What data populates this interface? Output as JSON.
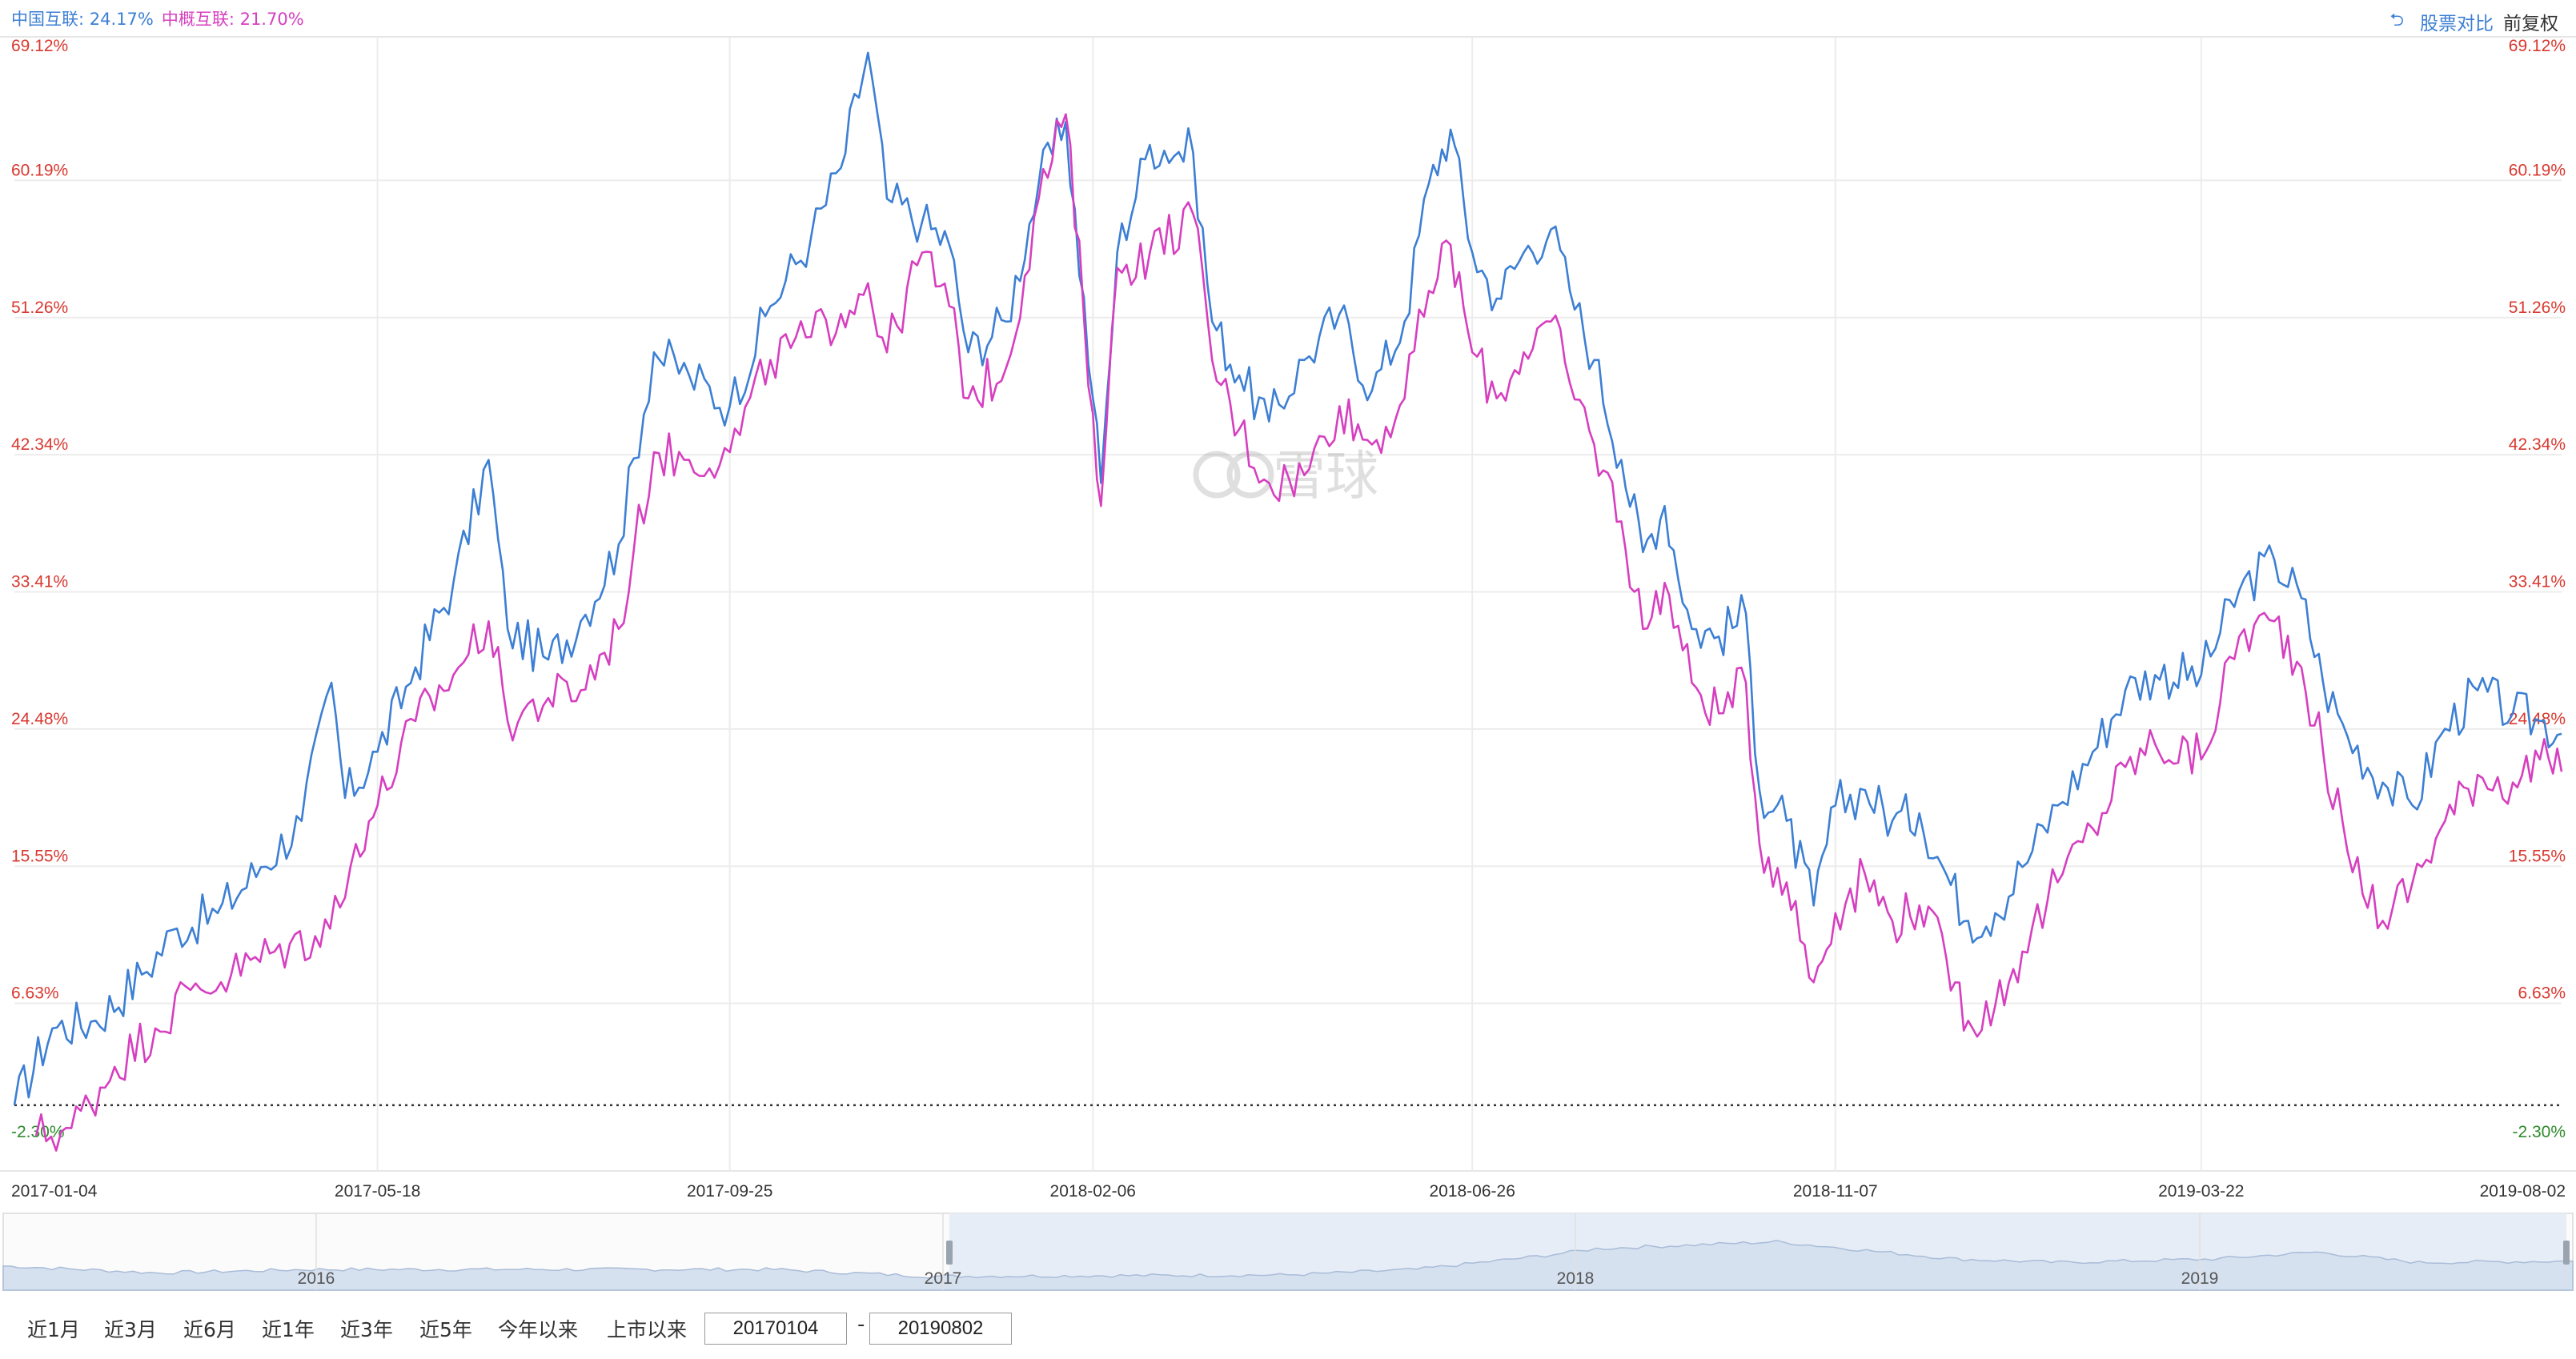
{
  "legend": {
    "series1": "中国互联: 24.17%",
    "series2": "中概互联: 21.70%"
  },
  "toolbar": {
    "compare_label": "股票对比",
    "adjust_label": "前复权"
  },
  "watermark": "雪球",
  "range_buttons": [
    "近1月",
    "近3月",
    "近6月",
    "近1年",
    "近3年",
    "近5年",
    "今年以来",
    "上市以来"
  ],
  "date_range": {
    "start": "20170104",
    "end": "20190802"
  },
  "navigator": {
    "year_labels": [
      "2016",
      "2017",
      "2018",
      "2019"
    ]
  },
  "colors": {
    "series1": "#3c7fd4",
    "series2": "#d63fc0",
    "ytick": "#d9382f",
    "ytick_negative": "#2e8b2e",
    "nav_fill": "#d6e1f0",
    "nav_line": "#a9bcd8"
  },
  "chart_data": {
    "type": "line",
    "title": "",
    "xlabel": "",
    "ylabel": "",
    "y_unit": "%",
    "ylim": [
      -2.3,
      69.12
    ],
    "yticks": [
      69.12,
      60.19,
      51.26,
      42.34,
      33.41,
      24.48,
      15.55,
      6.63,
      -2.3
    ],
    "ytick_labels": [
      "69.12%",
      "60.19%",
      "51.26%",
      "42.34%",
      "33.41%",
      "24.48%",
      "15.55%",
      "6.63%",
      "-2.30%"
    ],
    "xlim": [
      "2017-01-04",
      "2019-08-02"
    ],
    "xticks": [
      "2017-01-04",
      "2017-05-18",
      "2017-09-25",
      "2018-02-06",
      "2018-06-26",
      "2018-11-07",
      "2019-03-22",
      "2019-08-02"
    ],
    "baseline": 0,
    "grid": true,
    "legend": "top-left",
    "series": [
      {
        "name": "中国互联",
        "color": "#3c7fd4",
        "points": [
          [
            "2017-01-04",
            0.0
          ],
          [
            "2017-01-18",
            5.0
          ],
          [
            "2017-02-03",
            5.5
          ],
          [
            "2017-02-20",
            8.5
          ],
          [
            "2017-03-05",
            11.5
          ],
          [
            "2017-03-20",
            12.5
          ],
          [
            "2017-04-05",
            15.5
          ],
          [
            "2017-04-20",
            18.5
          ],
          [
            "2017-05-01",
            27.5
          ],
          [
            "2017-05-06",
            20.0
          ],
          [
            "2017-05-18",
            23.0
          ],
          [
            "2017-06-01",
            28.5
          ],
          [
            "2017-06-15",
            34.0
          ],
          [
            "2017-06-28",
            42.0
          ],
          [
            "2017-07-05",
            31.0
          ],
          [
            "2017-07-20",
            29.0
          ],
          [
            "2017-08-01",
            31.5
          ],
          [
            "2017-08-15",
            36.5
          ],
          [
            "2017-08-28",
            49.0
          ],
          [
            "2017-09-10",
            47.5
          ],
          [
            "2017-09-25",
            45.5
          ],
          [
            "2017-10-10",
            52.0
          ],
          [
            "2017-10-25",
            56.5
          ],
          [
            "2017-11-05",
            61.0
          ],
          [
            "2017-11-15",
            68.5
          ],
          [
            "2017-11-22",
            59.0
          ],
          [
            "2017-12-05",
            57.5
          ],
          [
            "2017-12-15",
            56.0
          ],
          [
            "2017-12-22",
            49.0
          ],
          [
            "2018-01-05",
            51.0
          ],
          [
            "2018-01-17",
            60.0
          ],
          [
            "2018-01-27",
            64.0
          ],
          [
            "2018-02-06",
            46.0
          ],
          [
            "2018-02-09",
            40.5
          ],
          [
            "2018-02-15",
            55.5
          ],
          [
            "2018-02-27",
            62.5
          ],
          [
            "2018-03-15",
            62.0
          ],
          [
            "2018-03-22",
            51.0
          ],
          [
            "2018-04-01",
            47.5
          ],
          [
            "2018-04-12",
            44.5
          ],
          [
            "2018-04-25",
            48.5
          ],
          [
            "2018-05-08",
            51.5
          ],
          [
            "2018-05-20",
            46.5
          ],
          [
            "2018-06-01",
            51.0
          ],
          [
            "2018-06-10",
            60.0
          ],
          [
            "2018-06-18",
            63.5
          ],
          [
            "2018-06-26",
            55.5
          ],
          [
            "2018-07-05",
            52.5
          ],
          [
            "2018-07-15",
            55.5
          ],
          [
            "2018-07-25",
            57.0
          ],
          [
            "2018-08-01",
            53.0
          ],
          [
            "2018-08-10",
            48.5
          ],
          [
            "2018-08-20",
            42.0
          ],
          [
            "2018-08-28",
            36.0
          ],
          [
            "2018-09-05",
            39.0
          ],
          [
            "2018-09-15",
            31.0
          ],
          [
            "2018-09-25",
            30.5
          ],
          [
            "2018-10-05",
            32.0
          ],
          [
            "2018-10-10",
            20.5
          ],
          [
            "2018-10-20",
            18.5
          ],
          [
            "2018-10-30",
            13.0
          ],
          [
            "2018-11-07",
            19.5
          ],
          [
            "2018-11-18",
            20.5
          ],
          [
            "2018-11-28",
            18.5
          ],
          [
            "2018-12-08",
            19.0
          ],
          [
            "2018-12-18",
            15.0
          ],
          [
            "2018-12-26",
            12.0
          ],
          [
            "2019-01-05",
            12.5
          ],
          [
            "2019-01-15",
            15.5
          ],
          [
            "2019-01-28",
            19.5
          ],
          [
            "2019-02-10",
            23.0
          ],
          [
            "2019-02-22",
            27.0
          ],
          [
            "2019-03-05",
            28.0
          ],
          [
            "2019-03-22",
            28.0
          ],
          [
            "2019-04-05",
            33.5
          ],
          [
            "2019-04-18",
            35.5
          ],
          [
            "2019-04-28",
            33.0
          ],
          [
            "2019-05-06",
            27.5
          ],
          [
            "2019-05-15",
            24.0
          ],
          [
            "2019-05-28",
            21.0
          ],
          [
            "2019-06-08",
            19.5
          ],
          [
            "2019-06-20",
            24.5
          ],
          [
            "2019-07-02",
            27.0
          ],
          [
            "2019-07-15",
            25.5
          ],
          [
            "2019-07-25",
            25.0
          ],
          [
            "2019-08-02",
            24.17
          ]
        ]
      },
      {
        "name": "中概互联",
        "color": "#d63fc0",
        "points": [
          [
            "2017-01-12",
            -2.0
          ],
          [
            "2017-01-25",
            -1.5
          ],
          [
            "2017-02-10",
            2.5
          ],
          [
            "2017-02-25",
            5.0
          ],
          [
            "2017-03-10",
            7.5
          ],
          [
            "2017-03-25",
            8.5
          ],
          [
            "2017-04-10",
            10.0
          ],
          [
            "2017-04-25",
            11.0
          ],
          [
            "2017-05-06",
            13.5
          ],
          [
            "2017-05-10",
            17.0
          ],
          [
            "2017-05-18",
            19.5
          ],
          [
            "2017-06-01",
            25.0
          ],
          [
            "2017-06-15",
            28.0
          ],
          [
            "2017-06-28",
            31.5
          ],
          [
            "2017-07-05",
            25.0
          ],
          [
            "2017-07-20",
            26.5
          ],
          [
            "2017-08-01",
            27.0
          ],
          [
            "2017-08-15",
            31.0
          ],
          [
            "2017-08-28",
            42.5
          ],
          [
            "2017-09-10",
            42.0
          ],
          [
            "2017-09-25",
            42.5
          ],
          [
            "2017-10-10",
            48.5
          ],
          [
            "2017-10-25",
            50.0
          ],
          [
            "2017-11-05",
            51.5
          ],
          [
            "2017-11-15",
            53.5
          ],
          [
            "2017-11-22",
            49.0
          ],
          [
            "2017-12-05",
            55.5
          ],
          [
            "2017-12-15",
            52.0
          ],
          [
            "2017-12-22",
            46.0
          ],
          [
            "2018-01-05",
            48.0
          ],
          [
            "2018-01-17",
            59.0
          ],
          [
            "2018-01-27",
            64.5
          ],
          [
            "2018-02-06",
            45.0
          ],
          [
            "2018-02-09",
            39.0
          ],
          [
            "2018-02-15",
            54.5
          ],
          [
            "2018-02-27",
            55.5
          ],
          [
            "2018-03-15",
            58.0
          ],
          [
            "2018-03-22",
            48.5
          ],
          [
            "2018-04-01",
            44.0
          ],
          [
            "2018-04-12",
            40.5
          ],
          [
            "2018-04-25",
            41.0
          ],
          [
            "2018-05-08",
            45.5
          ],
          [
            "2018-05-20",
            43.0
          ],
          [
            "2018-06-01",
            46.0
          ],
          [
            "2018-06-10",
            53.0
          ],
          [
            "2018-06-18",
            56.0
          ],
          [
            "2018-06-26",
            49.0
          ],
          [
            "2018-07-05",
            46.0
          ],
          [
            "2018-07-15",
            49.0
          ],
          [
            "2018-07-25",
            51.0
          ],
          [
            "2018-08-01",
            47.0
          ],
          [
            "2018-08-10",
            43.0
          ],
          [
            "2018-08-20",
            38.0
          ],
          [
            "2018-08-28",
            31.0
          ],
          [
            "2018-09-05",
            34.0
          ],
          [
            "2018-09-15",
            27.5
          ],
          [
            "2018-09-25",
            25.5
          ],
          [
            "2018-10-05",
            27.5
          ],
          [
            "2018-10-10",
            17.0
          ],
          [
            "2018-10-20",
            14.5
          ],
          [
            "2018-10-30",
            8.0
          ],
          [
            "2018-11-07",
            12.5
          ],
          [
            "2018-11-18",
            15.0
          ],
          [
            "2018-11-28",
            12.0
          ],
          [
            "2018-12-08",
            13.0
          ],
          [
            "2018-12-18",
            9.5
          ],
          [
            "2018-12-26",
            5.5
          ],
          [
            "2019-01-05",
            6.5
          ],
          [
            "2019-01-15",
            10.0
          ],
          [
            "2019-01-28",
            14.5
          ],
          [
            "2019-02-10",
            18.0
          ],
          [
            "2019-02-22",
            22.0
          ],
          [
            "2019-03-05",
            23.5
          ],
          [
            "2019-03-22",
            22.5
          ],
          [
            "2019-04-05",
            30.5
          ],
          [
            "2019-04-18",
            31.5
          ],
          [
            "2019-04-28",
            28.5
          ],
          [
            "2019-05-06",
            23.0
          ],
          [
            "2019-05-15",
            16.5
          ],
          [
            "2019-05-28",
            12.0
          ],
          [
            "2019-06-08",
            14.5
          ],
          [
            "2019-06-20",
            18.5
          ],
          [
            "2019-07-02",
            21.5
          ],
          [
            "2019-07-15",
            21.0
          ],
          [
            "2019-07-25",
            22.5
          ],
          [
            "2019-08-02",
            21.7
          ]
        ]
      }
    ]
  }
}
